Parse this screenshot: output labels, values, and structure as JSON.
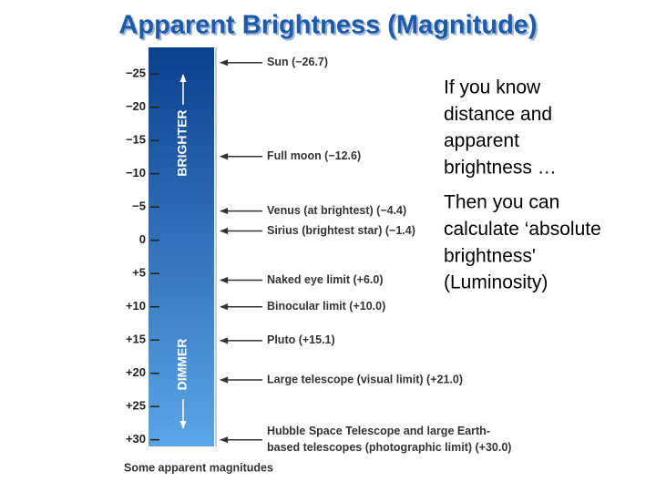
{
  "slide_title": "Apparent Brightness (Magnitude)",
  "chart_data": {
    "type": "magnitude-scale",
    "ylim": [
      -29,
      31
    ],
    "yticks": [
      {
        "value": -25,
        "label": "−25"
      },
      {
        "value": -20,
        "label": "−20"
      },
      {
        "value": -15,
        "label": "−15"
      },
      {
        "value": -10,
        "label": "−10"
      },
      {
        "value": -5,
        "label": "−5"
      },
      0,
      {
        "value": 5,
        "label": "+5"
      },
      {
        "value": 10,
        "label": "+10"
      },
      {
        "value": 15,
        "label": "+15"
      },
      {
        "value": 20,
        "label": "+20"
      },
      {
        "value": 25,
        "label": "+25"
      },
      {
        "value": 30,
        "label": "+30"
      }
    ],
    "axis_labels": [
      "BRIGHTER",
      "DIMMER"
    ],
    "annotations": [
      {
        "value": -26.7,
        "lines": [
          "Sun (−26.7)"
        ]
      },
      {
        "value": -12.6,
        "lines": [
          "Full moon (−12.6)"
        ]
      },
      {
        "value": -4.4,
        "lines": [
          "Venus (at brightest) (−4.4)"
        ]
      },
      {
        "value": -1.4,
        "lines": [
          "Sirius (brightest star) (−1.4)"
        ]
      },
      {
        "value": 6.0,
        "lines": [
          "Naked eye limit (+6.0)"
        ]
      },
      {
        "value": 10.0,
        "lines": [
          "Binocular limit (+10.0)"
        ]
      },
      {
        "value": 15.1,
        "lines": [
          "Pluto (+15.1)"
        ]
      },
      {
        "value": 21.0,
        "lines": [
          "Large telescope (visual limit) (+21.0)"
        ]
      },
      {
        "value": 30.0,
        "lines": [
          "Hubble Space Telescope and large Earth-",
          "based telescopes (photographic limit) (+30.0)"
        ]
      }
    ],
    "caption": "Some apparent magnitudes",
    "colors": {
      "bar_top": "#0b3f8f",
      "bar_bottom": "#5aa6e6"
    }
  },
  "notes": [
    [
      "If you know",
      "distance and",
      "apparent",
      "brightness …"
    ],
    [
      "Then you can",
      "calculate ‘absolute",
      "brightness'",
      "(Luminosity)"
    ]
  ]
}
